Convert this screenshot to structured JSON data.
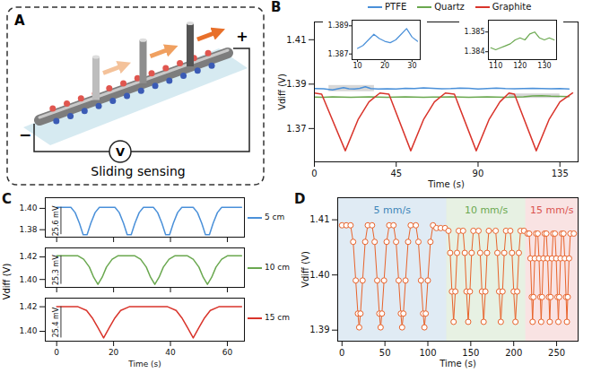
{
  "diagram": {
    "panel": "A",
    "title": "Sliding sensing",
    "plus": "+",
    "minus": "−",
    "meter": "V"
  },
  "chart_data": [
    {
      "panel": "B",
      "type": "line",
      "xlabel": "Time (s)",
      "ylabel": "Vdiff (V)",
      "xlim": [
        0,
        145
      ],
      "xticks": [
        0,
        45,
        90,
        135
      ],
      "ylim": [
        1.355,
        1.418
      ],
      "yticks": [
        1.37,
        1.39,
        1.41
      ],
      "legend": "top",
      "series": [
        {
          "name": "PTFE",
          "color": "#4a90d9",
          "x": [
            0,
            5,
            10,
            13,
            16,
            19,
            22,
            25,
            28,
            31,
            35,
            40,
            45,
            50,
            55,
            60,
            65,
            70,
            75,
            80,
            85,
            90,
            95,
            100,
            105,
            110,
            115,
            120,
            125,
            130,
            135,
            140
          ],
          "values": [
            1.388,
            1.3879,
            1.3874,
            1.3879,
            1.3884,
            1.3879,
            1.3878,
            1.3881,
            1.3888,
            1.388,
            1.3878,
            1.3879,
            1.3878,
            1.3881,
            1.388,
            1.3883,
            1.3881,
            1.3879,
            1.388,
            1.3882,
            1.3881,
            1.3878,
            1.388,
            1.3882,
            1.388,
            1.3879,
            1.388,
            1.3881,
            1.388,
            1.3879,
            1.388,
            1.3878
          ]
        },
        {
          "name": "Quartz",
          "color": "#6aa84f",
          "x": [
            0,
            5,
            10,
            15,
            20,
            25,
            30,
            35,
            40,
            45,
            50,
            55,
            60,
            65,
            70,
            75,
            80,
            85,
            90,
            95,
            100,
            105,
            110,
            115,
            120,
            125,
            130,
            135,
            140
          ],
          "values": [
            1.3842,
            1.3841,
            1.3843,
            1.3842,
            1.3841,
            1.3842,
            1.3843,
            1.3842,
            1.3841,
            1.3842,
            1.3843,
            1.3842,
            1.3841,
            1.3842,
            1.3842,
            1.3843,
            1.3842,
            1.3841,
            1.3842,
            1.3843,
            1.3842,
            1.3841,
            1.3842,
            1.3843,
            1.3847,
            1.3848,
            1.3846,
            1.3845,
            1.3844
          ]
        },
        {
          "name": "Graphite",
          "color": "#d9342b",
          "x": [
            0,
            4,
            17,
            24,
            30,
            36,
            41,
            53,
            60,
            66,
            72,
            77,
            89,
            96,
            102,
            107,
            110,
            122,
            129,
            135,
            142
          ],
          "values": [
            1.386,
            1.3855,
            1.36,
            1.374,
            1.382,
            1.386,
            1.3855,
            1.36,
            1.374,
            1.382,
            1.386,
            1.3855,
            1.36,
            1.374,
            1.382,
            1.386,
            1.3855,
            1.36,
            1.374,
            1.382,
            1.386
          ]
        }
      ]
    },
    {
      "panel": "B",
      "type": "line",
      "xlim": [
        8,
        33
      ],
      "xticks": [
        10,
        20,
        30
      ],
      "ylim": [
        1.3866,
        1.3894
      ],
      "yticks": [
        1.387,
        1.389
      ],
      "series": [
        {
          "color": "#4a90d9",
          "x": [
            10,
            12,
            14,
            16,
            18,
            20,
            22,
            24,
            26,
            28,
            30,
            32
          ],
          "values": [
            1.3874,
            1.3876,
            1.388,
            1.3884,
            1.3881,
            1.3879,
            1.3878,
            1.388,
            1.3884,
            1.3888,
            1.3882,
            1.3879
          ]
        }
      ]
    },
    {
      "panel": "B",
      "type": "line",
      "xlim": [
        107,
        135
      ],
      "xticks": [
        110,
        120,
        130
      ],
      "ylim": [
        1.3836,
        1.3856
      ],
      "yticks": [
        1.384,
        1.385
      ],
      "series": [
        {
          "color": "#6aa84f",
          "x": [
            108,
            110,
            112,
            114,
            116,
            118,
            120,
            122,
            124,
            126,
            128,
            130,
            132,
            134
          ],
          "values": [
            1.3842,
            1.3841,
            1.3842,
            1.3843,
            1.3844,
            1.3846,
            1.3847,
            1.3846,
            1.3849,
            1.385,
            1.3847,
            1.3846,
            1.3847,
            1.3846
          ]
        }
      ]
    },
    {
      "panel": "C",
      "type": "line",
      "tick_labels": "y",
      "xlim": [
        -4,
        66
      ],
      "xticks": [
        0,
        20,
        40,
        60
      ],
      "ylim": [
        1.373,
        1.41
      ],
      "yticks": [
        1.38,
        {
          "value": 1.4,
          "label": "1.40"
        }
      ],
      "legend": "right",
      "annotations": [
        {
          "label": "25.6 mV",
          "x": 1.5,
          "y1": 1.401,
          "y2": 1.3754
        }
      ],
      "series": [
        {
          "name": "5 cm",
          "color": "#4a90d9",
          "x": [
            0,
            5,
            6.5,
            8,
            9.3,
            10.7,
            12,
            13.5,
            15,
            20.5,
            22,
            23.5,
            24.8,
            26.2,
            27.5,
            29,
            30.5,
            34,
            35.5,
            37,
            38.3,
            39.7,
            41,
            42.5,
            44,
            48,
            49.5,
            51,
            52.3,
            53.7,
            55,
            56.5,
            58,
            65
          ],
          "values": [
            1.401,
            1.401,
            1.396,
            1.386,
            1.3754,
            1.3754,
            1.386,
            1.396,
            1.401,
            1.401,
            1.396,
            1.386,
            1.3754,
            1.3754,
            1.386,
            1.396,
            1.401,
            1.401,
            1.396,
            1.386,
            1.3754,
            1.3754,
            1.386,
            1.396,
            1.401,
            1.401,
            1.396,
            1.386,
            1.3754,
            1.3754,
            1.386,
            1.396,
            1.401,
            1.401
          ]
        }
      ]
    },
    {
      "panel": "C",
      "type": "line",
      "tick_labels": "y",
      "ylabel": "Vdiff (V)",
      "xlim": [
        -4,
        66
      ],
      "xticks": [
        0,
        20,
        40,
        60
      ],
      "ylim": [
        1.393,
        1.428
      ],
      "yticks": [
        {
          "value": 1.4,
          "label": "1.40"
        },
        {
          "value": 1.42,
          "label": "1.42"
        }
      ],
      "legend": "right",
      "annotations": [
        {
          "label": "25.3 mV",
          "x": 1.5,
          "y1": 1.421,
          "y2": 1.3957
        }
      ],
      "series": [
        {
          "name": "10 cm",
          "color": "#6aa84f",
          "x": [
            0,
            7.5,
            9.5,
            11.5,
            13,
            14.5,
            16,
            17.5,
            19.5,
            21.5,
            27.5,
            29.5,
            31.5,
            33,
            34.5,
            36,
            37.5,
            39.5,
            41.5,
            46,
            48,
            50,
            51.5,
            53,
            54.5,
            56,
            58,
            60,
            65
          ],
          "values": [
            1.421,
            1.421,
            1.418,
            1.411,
            1.402,
            1.3957,
            1.402,
            1.411,
            1.418,
            1.421,
            1.421,
            1.418,
            1.411,
            1.402,
            1.3957,
            1.402,
            1.411,
            1.418,
            1.421,
            1.421,
            1.418,
            1.411,
            1.402,
            1.3957,
            1.402,
            1.411,
            1.418,
            1.421,
            1.421
          ]
        }
      ]
    },
    {
      "panel": "C",
      "type": "line",
      "xlabel": "Time (s)",
      "xlim": [
        -4,
        66
      ],
      "xticks": [
        0,
        20,
        40,
        60
      ],
      "ylim": [
        1.392,
        1.427
      ],
      "yticks": [
        {
          "value": 1.4,
          "label": "1.40"
        },
        {
          "value": 1.42,
          "label": "1.42"
        }
      ],
      "legend": "right",
      "annotations": [
        {
          "label": "25.4 mV",
          "x": 1.5,
          "y1": 1.42,
          "y2": 1.3946
        }
      ],
      "series": [
        {
          "name": "15 cm",
          "color": "#d9342b",
          "x": [
            0,
            7.5,
            10.5,
            12.5,
            14.5,
            16.5,
            18.5,
            20.5,
            22.5,
            25.5,
            39,
            42,
            44,
            46,
            48,
            50,
            52,
            54,
            57,
            65
          ],
          "values": [
            1.42,
            1.42,
            1.417,
            1.411,
            1.403,
            1.3946,
            1.403,
            1.411,
            1.417,
            1.42,
            1.42,
            1.417,
            1.411,
            1.403,
            1.3946,
            1.403,
            1.411,
            1.417,
            1.42,
            1.42
          ]
        }
      ]
    },
    {
      "panel": "D",
      "type": "line",
      "marker": "circle",
      "line_style": "solid",
      "xlabel": "Time (s)",
      "ylabel": "Vdiff (V)",
      "xlim": [
        -5,
        275
      ],
      "xticks": [
        0,
        50,
        100,
        150,
        200,
        250
      ],
      "ylim": [
        1.388,
        1.414
      ],
      "yticks": [
        1.39,
        {
          "value": 1.4,
          "label": "1.40"
        },
        1.41
      ],
      "regions": [
        {
          "label": "5 mm/s",
          "x0": -5,
          "x1": 122,
          "color": "#3d85b8"
        },
        {
          "label": "10 mm/s",
          "x0": 122,
          "x1": 214,
          "color": "#6aa84f"
        },
        {
          "label": "15 mm/s",
          "x0": 214,
          "x1": 275,
          "color": "#d9534f"
        }
      ],
      "series": [
        {
          "color": "#e8632b",
          "x": [
            0,
            5,
            10,
            13,
            16,
            18.5,
            20,
            21.5,
            24,
            27,
            30,
            35,
            38,
            41,
            43.5,
            45,
            46.5,
            49,
            52,
            55,
            60,
            63,
            66,
            68.5,
            70,
            71.5,
            74,
            77,
            80,
            86,
            89,
            92,
            94.5,
            96,
            97.5,
            100,
            103,
            106,
            110,
            115,
            120,
            124,
            126,
            128,
            130,
            132,
            134,
            136,
            141,
            143,
            145,
            147,
            149,
            151,
            153,
            159,
            161,
            163,
            165,
            167,
            169,
            171,
            179,
            181,
            183,
            185,
            187,
            189,
            191,
            196,
            198,
            200,
            202,
            204,
            206,
            208,
            212,
            216,
            218,
            219.5,
            221,
            222,
            223,
            224.5,
            226,
            228,
            229.5,
            231,
            232,
            233,
            234.5,
            236,
            238,
            239.5,
            241,
            242,
            243,
            244.5,
            246,
            248,
            249.5,
            251,
            252,
            253,
            254.5,
            256,
            258,
            259.5,
            261,
            262,
            263,
            264.5,
            266,
            270
          ],
          "values": [
            1.409,
            1.409,
            1.409,
            1.406,
            1.399,
            1.393,
            1.3905,
            1.393,
            1.399,
            1.406,
            1.409,
            1.409,
            1.406,
            1.399,
            1.393,
            1.3905,
            1.393,
            1.399,
            1.406,
            1.409,
            1.409,
            1.406,
            1.399,
            1.393,
            1.3905,
            1.393,
            1.399,
            1.406,
            1.409,
            1.409,
            1.406,
            1.399,
            1.393,
            1.3905,
            1.393,
            1.399,
            1.406,
            1.409,
            1.4085,
            1.4085,
            1.4085,
            1.408,
            1.404,
            1.397,
            1.3915,
            1.397,
            1.404,
            1.408,
            1.408,
            1.404,
            1.397,
            1.3915,
            1.397,
            1.404,
            1.408,
            1.408,
            1.404,
            1.397,
            1.3915,
            1.397,
            1.404,
            1.408,
            1.408,
            1.404,
            1.397,
            1.3915,
            1.397,
            1.404,
            1.408,
            1.408,
            1.404,
            1.397,
            1.3915,
            1.397,
            1.404,
            1.408,
            1.408,
            1.4075,
            1.4075,
            1.403,
            1.396,
            1.3915,
            1.396,
            1.403,
            1.4075,
            1.4075,
            1.403,
            1.396,
            1.3915,
            1.396,
            1.403,
            1.4075,
            1.4075,
            1.403,
            1.396,
            1.3915,
            1.396,
            1.403,
            1.4075,
            1.4075,
            1.403,
            1.396,
            1.3915,
            1.396,
            1.403,
            1.4075,
            1.4075,
            1.403,
            1.396,
            1.3915,
            1.396,
            1.403,
            1.4075,
            1.4075
          ]
        }
      ]
    }
  ]
}
